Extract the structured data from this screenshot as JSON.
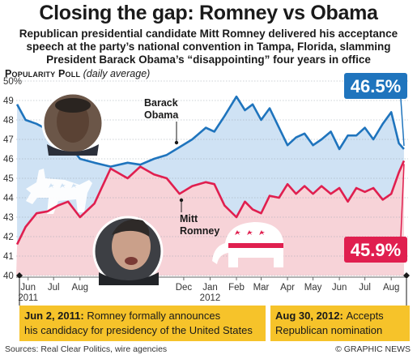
{
  "header": {
    "title": "Closing the gap: Romney vs Obama",
    "subtitle_lines": [
      "Republican presidential candidate Mitt Romney delivered his acceptance",
      "speech at the party’s national convention in Tampa, Florida, slamming",
      "President Barack Obama’s “disappointing” four years in office"
    ],
    "poll_label": "Popularity Poll",
    "poll_note": "(daily average)"
  },
  "footer": {
    "sources": "Sources: Real Clear Politics, wire agencies",
    "credit": "© GRAPHIC NEWS"
  },
  "colors": {
    "obama": "#1f74bd",
    "romney": "#e01f4f",
    "obama_fill": "#cfe2f4",
    "romney_fill": "#f7d3d8",
    "annotation_bg": "#f6c32a"
  },
  "icons": [
    "democrat-donkey-icon",
    "republican-elephant-icon",
    "obama-photo",
    "romney-photo"
  ],
  "chart_data": {
    "type": "line",
    "title": "Closing the gap: Romney vs Obama",
    "ylabel": "POPULARITY POLL (daily average)",
    "ylim": [
      40,
      50
    ],
    "y_ticks": [
      "40",
      "41",
      "42",
      "43",
      "44",
      "45",
      "46",
      "47",
      "48",
      "49",
      "50%"
    ],
    "x_range": [
      "2011-06-01",
      "2012-08-31"
    ],
    "x_ticks": [
      {
        "label": "Jun",
        "date": "2011-06-15"
      },
      {
        "label": "Jul",
        "date": "2011-07-15"
      },
      {
        "label": "Aug",
        "date": "2011-08-15"
      },
      {
        "label": "Dec",
        "date": "2011-12-15"
      },
      {
        "label": "Jan",
        "date": "2012-01-15"
      },
      {
        "label": "Feb",
        "date": "2012-02-15"
      },
      {
        "label": "Mar",
        "date": "2012-03-15"
      },
      {
        "label": "Apr",
        "date": "2012-04-15"
      },
      {
        "label": "May",
        "date": "2012-05-15"
      },
      {
        "label": "Jun",
        "date": "2012-06-15"
      },
      {
        "label": "Jul",
        "date": "2012-07-15"
      },
      {
        "label": "Aug",
        "date": "2012-08-15"
      }
    ],
    "year_labels": [
      {
        "label": "2011",
        "date": "2011-06-15"
      },
      {
        "label": "2012",
        "date": "2012-01-15"
      }
    ],
    "series": [
      {
        "name": "Barack Obama",
        "final_label": "46.5%",
        "points": [
          [
            "2011-06-02",
            48.8
          ],
          [
            "2011-06-12",
            48.0
          ],
          [
            "2011-06-25",
            47.8
          ],
          [
            "2011-07-08",
            47.5
          ],
          [
            "2011-07-20",
            47.2
          ],
          [
            "2011-08-01",
            46.8
          ],
          [
            "2011-08-15",
            46.0
          ],
          [
            "2011-09-01",
            45.8
          ],
          [
            "2011-09-20",
            45.6
          ],
          [
            "2011-10-10",
            45.8
          ],
          [
            "2011-10-25",
            45.7
          ],
          [
            "2011-11-10",
            46.0
          ],
          [
            "2011-11-25",
            46.2
          ],
          [
            "2011-12-10",
            46.6
          ],
          [
            "2011-12-25",
            47.0
          ],
          [
            "2012-01-10",
            47.6
          ],
          [
            "2012-01-20",
            47.4
          ],
          [
            "2012-02-01",
            48.2
          ],
          [
            "2012-02-15",
            49.2
          ],
          [
            "2012-02-25",
            48.5
          ],
          [
            "2012-03-05",
            48.8
          ],
          [
            "2012-03-15",
            48.0
          ],
          [
            "2012-03-25",
            48.6
          ],
          [
            "2012-04-05",
            47.6
          ],
          [
            "2012-04-15",
            46.7
          ],
          [
            "2012-04-25",
            47.1
          ],
          [
            "2012-05-05",
            47.3
          ],
          [
            "2012-05-15",
            46.7
          ],
          [
            "2012-05-25",
            47.0
          ],
          [
            "2012-06-05",
            47.4
          ],
          [
            "2012-06-15",
            46.5
          ],
          [
            "2012-06-25",
            47.2
          ],
          [
            "2012-07-05",
            47.2
          ],
          [
            "2012-07-15",
            47.6
          ],
          [
            "2012-07-25",
            47.0
          ],
          [
            "2012-08-05",
            47.8
          ],
          [
            "2012-08-15",
            48.4
          ],
          [
            "2012-08-24",
            46.8
          ],
          [
            "2012-08-30",
            46.5
          ]
        ]
      },
      {
        "name": "Mitt Romney",
        "final_label": "45.9%",
        "points": [
          [
            "2011-06-02",
            41.6
          ],
          [
            "2011-06-12",
            42.5
          ],
          [
            "2011-06-25",
            43.2
          ],
          [
            "2011-07-08",
            43.3
          ],
          [
            "2011-07-20",
            43.6
          ],
          [
            "2011-08-01",
            43.8
          ],
          [
            "2011-08-15",
            43.0
          ],
          [
            "2011-09-01",
            43.7
          ],
          [
            "2011-09-20",
            45.5
          ],
          [
            "2011-10-10",
            45.0
          ],
          [
            "2011-10-25",
            45.6
          ],
          [
            "2011-11-10",
            45.2
          ],
          [
            "2011-11-25",
            45.0
          ],
          [
            "2011-12-10",
            44.2
          ],
          [
            "2011-12-25",
            44.6
          ],
          [
            "2012-01-10",
            44.8
          ],
          [
            "2012-01-20",
            44.7
          ],
          [
            "2012-02-01",
            43.6
          ],
          [
            "2012-02-15",
            43.0
          ],
          [
            "2012-02-25",
            43.8
          ],
          [
            "2012-03-05",
            43.4
          ],
          [
            "2012-03-15",
            43.2
          ],
          [
            "2012-03-25",
            44.1
          ],
          [
            "2012-04-05",
            44.0
          ],
          [
            "2012-04-15",
            44.7
          ],
          [
            "2012-04-25",
            44.2
          ],
          [
            "2012-05-05",
            44.6
          ],
          [
            "2012-05-15",
            44.2
          ],
          [
            "2012-05-25",
            44.6
          ],
          [
            "2012-06-05",
            44.2
          ],
          [
            "2012-06-15",
            44.5
          ],
          [
            "2012-06-25",
            43.8
          ],
          [
            "2012-07-05",
            44.5
          ],
          [
            "2012-07-15",
            44.3
          ],
          [
            "2012-07-25",
            44.5
          ],
          [
            "2012-08-05",
            43.9
          ],
          [
            "2012-08-15",
            44.2
          ],
          [
            "2012-08-24",
            45.3
          ],
          [
            "2012-08-30",
            45.9
          ]
        ]
      }
    ],
    "annotations": [
      {
        "date_label": "Jun 2, 2011:",
        "text": "Romney formally announces his candidacy for presidency of the United States"
      },
      {
        "date_label": "Aug 30, 2012:",
        "text": "Accepts Republican nomination"
      }
    ]
  }
}
